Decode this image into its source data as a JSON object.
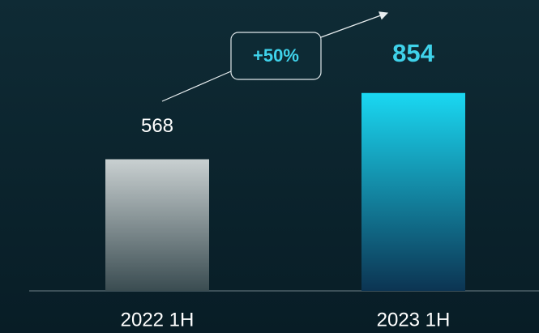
{
  "chart_data": {
    "type": "bar",
    "categories": [
      "2022 1H",
      "2023 1H"
    ],
    "values": [
      568,
      854
    ],
    "colors": [
      "#c9d0d1",
      "#1ad8f2"
    ],
    "ylim": [
      0,
      1000
    ],
    "annotation": "+50%"
  }
}
